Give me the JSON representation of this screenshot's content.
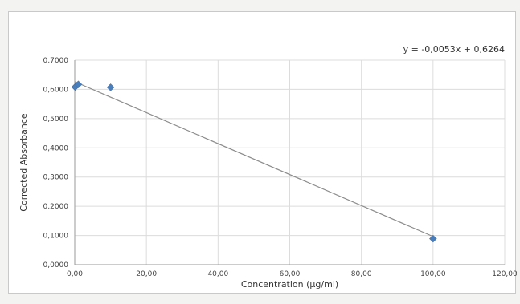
{
  "chart_data": {
    "type": "scatter",
    "title": "",
    "xlabel": "Concentration (µg/ml)",
    "ylabel": "Corrected Absorbance",
    "xlim": [
      0,
      120
    ],
    "ylim": [
      0,
      0.7
    ],
    "x_ticks": [
      "0,00",
      "20,00",
      "40,00",
      "60,00",
      "80,00",
      "100,00",
      "120,00"
    ],
    "y_ticks": [
      "0,0000",
      "0,1000",
      "0,2000",
      "0,3000",
      "0,4000",
      "0,5000",
      "0,6000",
      "0,7000"
    ],
    "x_tick_values": [
      0,
      20,
      40,
      60,
      80,
      100,
      120
    ],
    "y_tick_values": [
      0,
      0.1,
      0.2,
      0.3,
      0.4,
      0.5,
      0.6,
      0.7
    ],
    "grid": true,
    "series": [
      {
        "x": [
          0.1,
          1,
          10,
          100
        ],
        "y": [
          0.608,
          0.617,
          0.607,
          0.089
        ],
        "marker": "diamond",
        "color": "#4a7ebb"
      }
    ],
    "trendline": {
      "type": "linear",
      "slope": -0.0053,
      "intercept": 0.6264,
      "x_range": [
        0.1,
        100
      ],
      "color": "#8c8c8c",
      "equation": "y = -0,0053x + 0,6264"
    }
  }
}
